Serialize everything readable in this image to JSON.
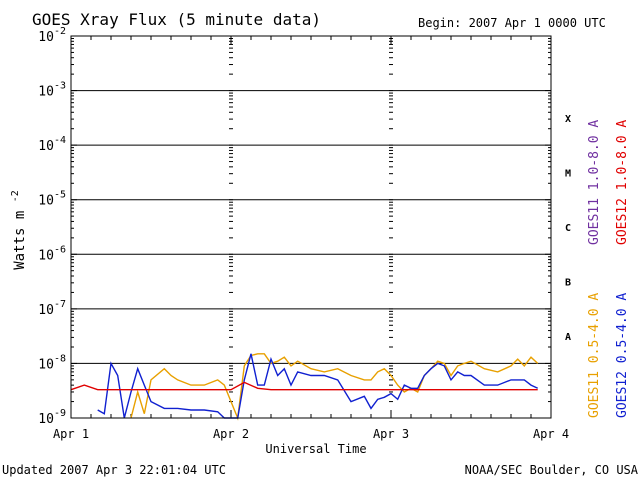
{
  "chart_data": {
    "type": "line",
    "title": "GOES Xray Flux (5 minute data)",
    "begin_label": "Begin:  2007 Apr 1 0000 UTC",
    "xlabel": "Universal Time",
    "ylabel": "Watts m",
    "ylabel_superscript": "-2",
    "y_scale": "log",
    "ylim": [
      1e-09,
      0.01
    ],
    "xlim": [
      0,
      72
    ],
    "x_ticks": [
      {
        "hours": 0,
        "label": "Apr 1"
      },
      {
        "hours": 24,
        "label": "Apr 2"
      },
      {
        "hours": 48,
        "label": "Apr 3"
      },
      {
        "hours": 72,
        "label": "Apr 4"
      }
    ],
    "y_ticks": [
      {
        "exp": -2,
        "label": "10",
        "sup": "-2"
      },
      {
        "exp": -3,
        "label": "10",
        "sup": "-3"
      },
      {
        "exp": -4,
        "label": "10",
        "sup": "-4"
      },
      {
        "exp": -5,
        "label": "10",
        "sup": "-5"
      },
      {
        "exp": -6,
        "label": "10",
        "sup": "-6"
      },
      {
        "exp": -7,
        "label": "10",
        "sup": "-7"
      },
      {
        "exp": -8,
        "label": "10",
        "sup": "-8"
      },
      {
        "exp": -9,
        "label": "10",
        "sup": "-9"
      }
    ],
    "flare_classes": [
      {
        "label": "X",
        "exp": -3.5
      },
      {
        "label": "M",
        "exp": -4.5
      },
      {
        "label": "C",
        "exp": -5.5
      },
      {
        "label": "B",
        "exp": -6.5
      },
      {
        "label": "A",
        "exp": -7.5
      }
    ],
    "grid": true,
    "legend_position": "right-vertical",
    "series": [
      {
        "name": "GOES11 0.5-4.0 A",
        "color": "#e8a000",
        "x": [
          0,
          4,
          6,
          8,
          9,
          10,
          11,
          12,
          14,
          15,
          16,
          18,
          20,
          22,
          23,
          24,
          25,
          26,
          27,
          28,
          29,
          30,
          31,
          32,
          33,
          34,
          36,
          38,
          40,
          42,
          44,
          45,
          46,
          47,
          48,
          49,
          50,
          51,
          52,
          53,
          54,
          55,
          56,
          57,
          58,
          59,
          60,
          62,
          64,
          66,
          67,
          68,
          69,
          70
        ],
        "y": [
          null,
          null,
          null,
          null,
          9e-10,
          3e-09,
          1.2e-09,
          5e-09,
          8e-09,
          6e-09,
          5e-09,
          4e-09,
          4e-09,
          5e-09,
          4e-09,
          2e-09,
          8e-10,
          9e-09,
          1.4e-08,
          1.5e-08,
          1.5e-08,
          1e-08,
          1.1e-08,
          1.3e-08,
          9e-09,
          1.1e-08,
          8e-09,
          7e-09,
          8e-09,
          6e-09,
          5e-09,
          5e-09,
          7e-09,
          8e-09,
          6e-09,
          4e-09,
          3e-09,
          3.5e-09,
          3e-09,
          6e-09,
          8e-09,
          1.1e-08,
          1e-08,
          6e-09,
          9e-09,
          1e-08,
          1.1e-08,
          8e-09,
          7e-09,
          9e-09,
          1.2e-08,
          9e-09,
          1.3e-08,
          1e-08
        ]
      },
      {
        "name": "GOES12 0.5-4.0 A",
        "color": "#1020d0",
        "x": [
          0,
          1,
          2,
          3,
          4,
          5,
          6,
          7,
          8,
          9,
          10,
          11,
          12,
          14,
          16,
          18,
          20,
          22,
          23,
          24,
          25,
          26,
          27,
          28,
          29,
          30,
          31,
          32,
          33,
          34,
          36,
          38,
          40,
          42,
          44,
          45,
          46,
          47,
          48,
          49,
          50,
          51,
          52,
          53,
          54,
          55,
          56,
          57,
          58,
          59,
          60,
          62,
          64,
          66,
          67,
          68,
          69,
          70
        ],
        "y": [
          null,
          null,
          null,
          null,
          1.4e-09,
          1.2e-09,
          1e-08,
          6e-09,
          8e-10,
          3e-09,
          8e-09,
          4e-09,
          2e-09,
          1.5e-09,
          1.5e-09,
          1.4e-09,
          1.4e-09,
          1.3e-09,
          9e-10,
          6e-10,
          8e-10,
          5e-09,
          1.5e-08,
          4e-09,
          4e-09,
          1.2e-08,
          6e-09,
          8e-09,
          4e-09,
          7e-09,
          6e-09,
          6e-09,
          5e-09,
          2e-09,
          2.5e-09,
          1.5e-09,
          2.2e-09,
          2.4e-09,
          2.8e-09,
          2.2e-09,
          4e-09,
          3.5e-09,
          3.5e-09,
          6e-09,
          8e-09,
          1e-08,
          9e-09,
          5e-09,
          7e-09,
          6e-09,
          6e-09,
          4e-09,
          4e-09,
          5e-09,
          5e-09,
          5e-09,
          4e-09,
          3.5e-09
        ]
      },
      {
        "name": "GOES11 1.0-8.0 A",
        "color": "#7030a0",
        "x": [],
        "y": []
      },
      {
        "name": "GOES12 1.0-8.0 A",
        "color": "#e00000",
        "x": [
          0,
          2,
          4,
          6,
          8,
          10,
          12,
          14,
          16,
          18,
          20,
          22,
          24,
          26,
          28,
          30,
          32,
          34,
          36,
          38,
          40,
          42,
          44,
          46,
          48,
          50,
          52,
          54,
          56,
          58,
          60,
          62,
          64,
          66,
          68,
          70
        ],
        "y": [
          3.3e-09,
          4e-09,
          3.3e-09,
          3.3e-09,
          3.3e-09,
          3.3e-09,
          3.3e-09,
          3.3e-09,
          3.3e-09,
          3.3e-09,
          3.3e-09,
          3.3e-09,
          3.3e-09,
          4.5e-09,
          3.5e-09,
          3.3e-09,
          3.3e-09,
          3.3e-09,
          3.3e-09,
          3.3e-09,
          3.3e-09,
          3.3e-09,
          3.3e-09,
          3.3e-09,
          3.3e-09,
          3.3e-09,
          3.3e-09,
          3.3e-09,
          3.3e-09,
          3.3e-09,
          3.3e-09,
          3.3e-09,
          3.3e-09,
          3.3e-09,
          3.3e-09,
          3.3e-09
        ]
      }
    ]
  },
  "footer": {
    "updated": "Updated 2007 Apr  3 22:01:04 UTC",
    "credit": "NOAA/SEC Boulder, CO USA"
  }
}
